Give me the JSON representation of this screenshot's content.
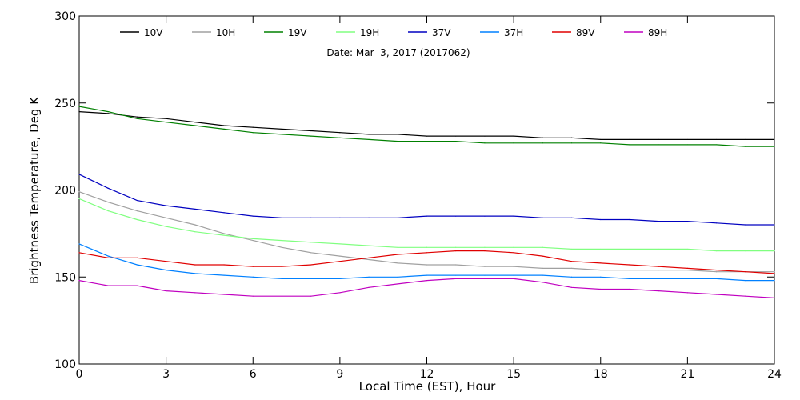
{
  "chart_data": {
    "type": "line",
    "title": "",
    "subtitle": "Date: Mar  3, 2017 (2017062)",
    "xlabel": "Local Time (EST), Hour",
    "ylabel": "Brightness Temperature, Deg K",
    "xlim": [
      0,
      24
    ],
    "ylim": [
      100,
      300
    ],
    "xticks": [
      0,
      3,
      6,
      9,
      12,
      15,
      18,
      21,
      24
    ],
    "yticks": [
      100,
      150,
      200,
      250,
      300
    ],
    "grid": false,
    "legend_position": "top",
    "x": [
      0,
      1,
      2,
      3,
      4,
      5,
      6,
      7,
      8,
      9,
      10,
      11,
      12,
      13,
      14,
      15,
      16,
      17,
      18,
      19,
      20,
      21,
      22,
      23,
      24
    ],
    "series": [
      {
        "name": "10V",
        "color": "#000000",
        "values": [
          245,
          244,
          242,
          241,
          239,
          237,
          236,
          235,
          234,
          233,
          232,
          232,
          231,
          231,
          231,
          231,
          230,
          230,
          229,
          229,
          229,
          229,
          229,
          229,
          229
        ]
      },
      {
        "name": "10H",
        "color": "#a0a0a0",
        "values": [
          199,
          193,
          188,
          184,
          180,
          175,
          171,
          167,
          164,
          162,
          160,
          158,
          157,
          157,
          156,
          156,
          155,
          155,
          154,
          154,
          154,
          154,
          153,
          153,
          153
        ]
      },
      {
        "name": "19V",
        "color": "#008000",
        "values": [
          248,
          245,
          241,
          239,
          237,
          235,
          233,
          232,
          231,
          230,
          229,
          228,
          228,
          228,
          227,
          227,
          227,
          227,
          227,
          226,
          226,
          226,
          226,
          225,
          225
        ]
      },
      {
        "name": "19H",
        "color": "#80ff80",
        "values": [
          195,
          188,
          183,
          179,
          176,
          174,
          172,
          171,
          170,
          169,
          168,
          167,
          167,
          167,
          167,
          167,
          167,
          166,
          166,
          166,
          166,
          166,
          165,
          165,
          165
        ]
      },
      {
        "name": "37V",
        "color": "#0000c0",
        "values": [
          209,
          201,
          194,
          191,
          189,
          187,
          185,
          184,
          184,
          184,
          184,
          184,
          185,
          185,
          185,
          185,
          184,
          184,
          183,
          183,
          182,
          182,
          181,
          180,
          180
        ]
      },
      {
        "name": "37H",
        "color": "#0080ff",
        "values": [
          169,
          162,
          157,
          154,
          152,
          151,
          150,
          149,
          149,
          149,
          150,
          150,
          151,
          151,
          151,
          151,
          151,
          150,
          150,
          149,
          149,
          149,
          149,
          148,
          148
        ]
      },
      {
        "name": "89V",
        "color": "#e00000",
        "values": [
          164,
          161,
          161,
          159,
          157,
          157,
          156,
          156,
          157,
          159,
          161,
          163,
          164,
          165,
          165,
          164,
          162,
          159,
          158,
          157,
          156,
          155,
          154,
          153,
          152
        ]
      },
      {
        "name": "89H",
        "color": "#c000c0",
        "values": [
          148,
          145,
          145,
          142,
          141,
          140,
          139,
          139,
          139,
          141,
          144,
          146,
          148,
          149,
          149,
          149,
          147,
          144,
          143,
          143,
          142,
          141,
          140,
          139,
          138
        ]
      }
    ]
  }
}
